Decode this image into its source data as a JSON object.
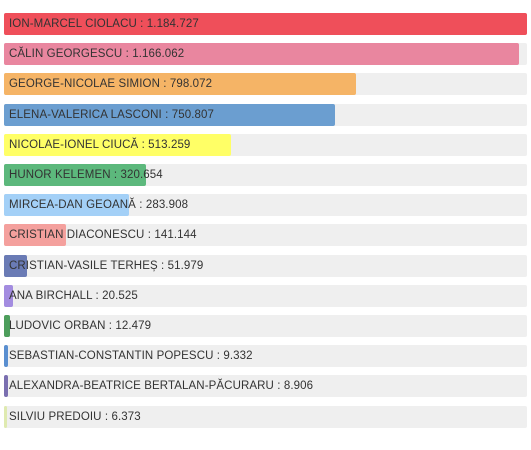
{
  "chart_data": {
    "type": "bar",
    "orientation": "horizontal",
    "xlim": [
      0,
      1184727
    ],
    "grid": false,
    "bars": [
      {
        "name": "ION-MARCEL CIOLACU",
        "value": 1184727,
        "value_text": "1.184.727",
        "color": "#ef4f5a"
      },
      {
        "name": "CĂLIN GEORGESCU",
        "value": 1166062,
        "value_text": "1.166.062",
        "color": "#e9869f"
      },
      {
        "name": "GEORGE-NICOLAE SIMION",
        "value": 798072,
        "value_text": "798.072",
        "color": "#f5b466"
      },
      {
        "name": "ELENA-VALERICA LASCONI",
        "value": 750807,
        "value_text": "750.807",
        "color": "#6b9ed0"
      },
      {
        "name": "NICOLAE-IONEL CIUCĂ",
        "value": 513259,
        "value_text": "513.259",
        "color": "#ffff66"
      },
      {
        "name": "HUNOR KELEMEN",
        "value": 320654,
        "value_text": "320.654",
        "color": "#5cb87c"
      },
      {
        "name": "MIRCEA-DAN GEOANĂ",
        "value": 283908,
        "value_text": "283.908",
        "color": "#a3d0f7"
      },
      {
        "name": "CRISTIAN DIACONESCU",
        "value": 141144,
        "value_text": "141.144",
        "color": "#f4a09d"
      },
      {
        "name": "CRISTIAN-VASILE TERHEȘ",
        "value": 51979,
        "value_text": "51.979",
        "color": "#6a7bb5"
      },
      {
        "name": "ANA BIRCHALL",
        "value": 20525,
        "value_text": "20.525",
        "color": "#a38ce0"
      },
      {
        "name": "LUDOVIC ORBAN",
        "value": 12479,
        "value_text": "12.479",
        "color": "#4d9e5c"
      },
      {
        "name": "SEBASTIAN-CONSTANTIN POPESCU",
        "value": 9332,
        "value_text": "9.332",
        "color": "#5a8fd0"
      },
      {
        "name": "ALEXANDRA-BEATRICE BERTALAN-PĂCURARU",
        "value": 8906,
        "value_text": "8.906",
        "color": "#7a6fb0"
      },
      {
        "name": "SILVIU PREDOIU",
        "value": 6373,
        "value_text": "6.373",
        "color": "#dfeab0"
      }
    ]
  }
}
